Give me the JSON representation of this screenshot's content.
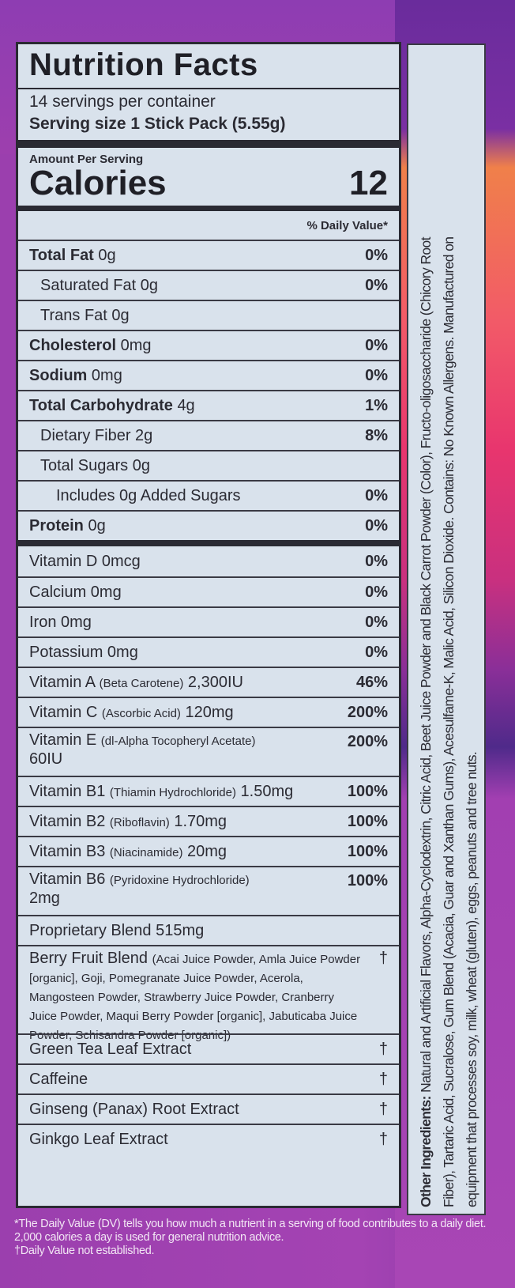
{
  "header": {
    "title": "Nutrition Facts",
    "servings": "14 servings per container",
    "serving_size": "Serving size 1 Stick Pack (5.55g)"
  },
  "calories": {
    "amount_label": "Amount Per Serving",
    "label": "Calories",
    "value": "12"
  },
  "dv_header": "% Daily Value*",
  "nutrients": [
    {
      "name": "Total Fat",
      "amount": "0g",
      "dv": "0%",
      "bold": true,
      "indent": 0
    },
    {
      "name": "Saturated Fat",
      "amount": "0g",
      "dv": "0%",
      "bold": false,
      "indent": 1
    },
    {
      "name": "Trans Fat",
      "amount": "0g",
      "dv": "",
      "bold": false,
      "indent": 1
    },
    {
      "name": "Cholesterol",
      "amount": "0mg",
      "dv": "0%",
      "bold": true,
      "indent": 0
    },
    {
      "name": "Sodium",
      "amount": "0mg",
      "dv": "0%",
      "bold": true,
      "indent": 0
    },
    {
      "name": "Total Carbohydrate",
      "amount": "4g",
      "dv": "1%",
      "bold": true,
      "indent": 0
    },
    {
      "name": "Dietary Fiber",
      "amount": "2g",
      "dv": "8%",
      "bold": false,
      "indent": 1
    },
    {
      "name": "Total Sugars",
      "amount": "0g",
      "dv": "",
      "bold": false,
      "indent": 1
    },
    {
      "name": "Includes 0g Added Sugars",
      "amount": "",
      "dv": "0%",
      "bold": false,
      "indent": 2
    },
    {
      "name": "Protein",
      "amount": "0g",
      "dv": "0%",
      "bold": true,
      "indent": 0
    }
  ],
  "vitamins": [
    {
      "name": "Vitamin D 0mcg",
      "detail": "",
      "amount": "",
      "dv": "0%"
    },
    {
      "name": "Calcium 0mg",
      "detail": "",
      "amount": "",
      "dv": "0%"
    },
    {
      "name": "Iron 0mg",
      "detail": "",
      "amount": "",
      "dv": "0%"
    },
    {
      "name": "Potassium 0mg",
      "detail": "",
      "amount": "",
      "dv": "0%"
    },
    {
      "name": "Vitamin A",
      "detail": "(Beta Carotene)",
      "amount": "2,300IU",
      "dv": "46%"
    },
    {
      "name": "Vitamin C",
      "detail": "(Ascorbic Acid)",
      "amount": "120mg",
      "dv": "200%"
    },
    {
      "name": "Vitamin E",
      "detail": "(dl-Alpha Tocopheryl Acetate)",
      "amount": "60IU",
      "dv": "200%"
    },
    {
      "name": "Vitamin B1",
      "detail": "(Thiamin Hydrochloride)",
      "amount": "1.50mg",
      "dv": "100%"
    },
    {
      "name": "Vitamin B2",
      "detail": "(Riboflavin)",
      "amount": "1.70mg",
      "dv": "100%"
    },
    {
      "name": "Vitamin B3",
      "detail": "(Niacinamide)",
      "amount": "20mg",
      "dv": "100%"
    },
    {
      "name": "Vitamin B6",
      "detail": "(Pyridoxine Hydrochloride)",
      "amount": "2mg",
      "dv": "100%"
    }
  ],
  "blend": {
    "title": "Proprietary Blend 515mg",
    "berry_name": "Berry Fruit Blend",
    "berry_detail": "(Acai Juice Powder, Amla Juice Powder [organic], Goji, Pomegranate Juice Powder, Acerola, Mangosteen Powder, Strawberry Juice Powder, Cranberry Juice Powder, Maqui Berry Powder [organic], Jabuticaba Juice Powder, Schisandra Powder [organic])",
    "berry_dv": "†",
    "items": [
      {
        "name": "Green Tea Leaf Extract",
        "dv": "†"
      },
      {
        "name": "Caffeine",
        "dv": "†"
      },
      {
        "name": "Ginseng (Panax) Root Extract",
        "dv": "†"
      },
      {
        "name": "Ginkgo Leaf Extract",
        "dv": "†"
      }
    ]
  },
  "ingredients": {
    "label": "Other Ingredients:",
    "line1": "Natural and Artificial Flavors, Alpha-Cyclodextrin, Citric Acid, Beet Juice Powder and Black Carrot Powder (Color), Fructo-oligosaccharide (Chicory Root",
    "line2": "Fiber), Tartaric Acid, Sucralose, Gum Blend (Acacia, Guar and Xanthan Gums), Acesulfame-K, Malic Acid, Silicon Dioxide.  Contains: No Known Allergens.  Manufactured on",
    "line3": "equipment that processes soy, milk, wheat (gluten), eggs, peanuts and tree nuts."
  },
  "footnote": {
    "dv_note": "*The Daily Value (DV) tells you how much a nutrient in a serving of food contributes to a daily diet. 2,000 calories a day is used for general nutrition advice.",
    "dagger_note": "†Daily Value not established."
  },
  "colors": {
    "background": "#a443b3",
    "label": "#d9e2ec",
    "text": "#2b2b33"
  }
}
